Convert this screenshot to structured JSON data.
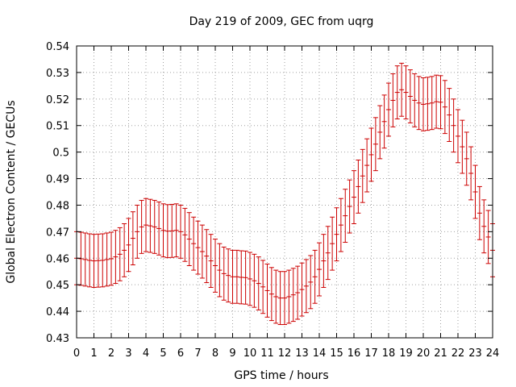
{
  "chart_data": {
    "type": "errorbar",
    "title": "Day 219 of 2009, GEC from uqrg",
    "xlabel": "GPS time / hours",
    "ylabel": "Global Electron Content / GECUs",
    "xlim": [
      0,
      24
    ],
    "ylim": [
      0.43,
      0.54
    ],
    "xticks": [
      "0",
      "1",
      "2",
      "3",
      "4",
      "5",
      "6",
      "7",
      "8",
      "9",
      "10",
      "11",
      "12",
      "13",
      "14",
      "15",
      "16",
      "17",
      "18",
      "19",
      "20",
      "21",
      "22",
      "23",
      "24"
    ],
    "yticks": [
      "0.43",
      "0.44",
      "0.45",
      "0.46",
      "0.47",
      "0.48",
      "0.49",
      "0.5",
      "0.51",
      "0.52",
      "0.53",
      "0.54"
    ],
    "grid": true,
    "color": "#cc0000",
    "series": [
      {
        "name": "GEC",
        "x": [
          0,
          0.25,
          0.5,
          0.75,
          1,
          1.25,
          1.5,
          1.75,
          2,
          2.25,
          2.5,
          2.75,
          3,
          3.25,
          3.5,
          3.75,
          4,
          4.25,
          4.5,
          4.75,
          5,
          5.25,
          5.5,
          5.75,
          6,
          6.25,
          6.5,
          6.75,
          7,
          7.25,
          7.5,
          7.75,
          8,
          8.25,
          8.5,
          8.75,
          9,
          9.25,
          9.5,
          9.75,
          10,
          10.25,
          10.5,
          10.75,
          11,
          11.25,
          11.5,
          11.75,
          12,
          12.25,
          12.5,
          12.75,
          13,
          13.25,
          13.5,
          13.75,
          14,
          14.25,
          14.5,
          14.75,
          15,
          15.25,
          15.5,
          15.75,
          16,
          16.25,
          16.5,
          16.75,
          17,
          17.25,
          17.5,
          17.75,
          18,
          18.25,
          18.5,
          18.75,
          19,
          19.25,
          19.5,
          19.75,
          20,
          20.25,
          20.5,
          20.75,
          21,
          21.25,
          21.5,
          21.75,
          22,
          22.25,
          22.5,
          22.75,
          23,
          23.25,
          23.5,
          23.75,
          24
        ],
        "y": [
          0.46,
          0.4598,
          0.4595,
          0.4592,
          0.459,
          0.4591,
          0.4592,
          0.4595,
          0.4598,
          0.4605,
          0.4615,
          0.463,
          0.465,
          0.4675,
          0.47,
          0.4718,
          0.4725,
          0.4722,
          0.4718,
          0.4712,
          0.4705,
          0.4702,
          0.4703,
          0.4705,
          0.47,
          0.4688,
          0.4672,
          0.4655,
          0.464,
          0.4625,
          0.4608,
          0.459,
          0.4572,
          0.4555,
          0.4542,
          0.4535,
          0.453,
          0.453,
          0.4528,
          0.4527,
          0.4522,
          0.4515,
          0.4505,
          0.4492,
          0.4478,
          0.4465,
          0.4455,
          0.445,
          0.445,
          0.4455,
          0.4462,
          0.447,
          0.4482,
          0.4495,
          0.451,
          0.453,
          0.4558,
          0.459,
          0.462,
          0.4655,
          0.469,
          0.4725,
          0.476,
          0.4795,
          0.483,
          0.487,
          0.491,
          0.495,
          0.499,
          0.503,
          0.5075,
          0.5115,
          0.516,
          0.5195,
          0.5225,
          0.5235,
          0.5225,
          0.521,
          0.5195,
          0.5185,
          0.518,
          0.5182,
          0.5185,
          0.519,
          0.5188,
          0.517,
          0.514,
          0.51,
          0.506,
          0.502,
          0.4975,
          0.492,
          0.485,
          0.477,
          0.472,
          0.468,
          0.463
        ],
        "error": [
          0.01,
          0.01,
          0.01,
          0.01,
          0.01,
          0.01,
          0.01,
          0.01,
          0.01,
          0.01,
          0.01,
          0.01,
          0.01,
          0.01,
          0.01,
          0.01,
          0.01,
          0.01,
          0.01,
          0.01,
          0.01,
          0.01,
          0.01,
          0.01,
          0.01,
          0.01,
          0.01,
          0.01,
          0.01,
          0.01,
          0.01,
          0.01,
          0.01,
          0.01,
          0.01,
          0.01,
          0.01,
          0.01,
          0.01,
          0.01,
          0.01,
          0.01,
          0.01,
          0.01,
          0.01,
          0.01,
          0.01,
          0.01,
          0.01,
          0.01,
          0.01,
          0.01,
          0.01,
          0.01,
          0.01,
          0.01,
          0.01,
          0.01,
          0.01,
          0.01,
          0.01,
          0.01,
          0.01,
          0.01,
          0.01,
          0.01,
          0.01,
          0.01,
          0.01,
          0.01,
          0.01,
          0.01,
          0.01,
          0.01,
          0.01,
          0.01,
          0.01,
          0.01,
          0.01,
          0.01,
          0.01,
          0.01,
          0.01,
          0.01,
          0.01,
          0.01,
          0.01,
          0.01,
          0.01,
          0.01,
          0.01,
          0.01,
          0.01,
          0.01,
          0.01,
          0.01,
          0.01
        ]
      }
    ]
  }
}
